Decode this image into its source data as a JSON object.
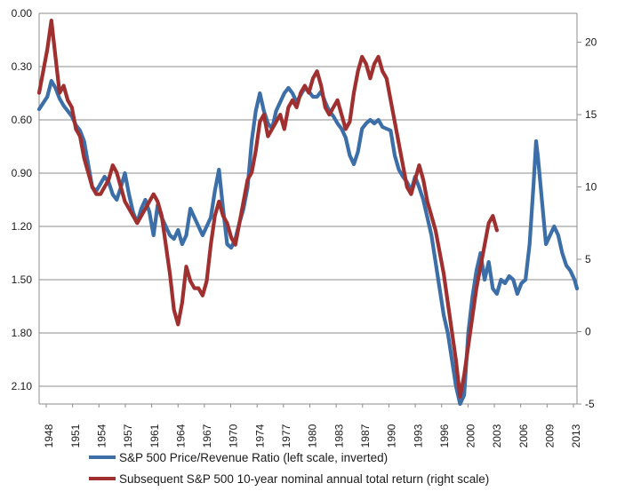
{
  "chart_data": {
    "type": "line",
    "title": "",
    "x_tick_labels": [
      "1948",
      "1951",
      "1954",
      "1957",
      "1961",
      "1964",
      "1967",
      "1970",
      "1974",
      "1977",
      "1980",
      "1983",
      "1987",
      "1990",
      "1993",
      "1996",
      "2000",
      "2003",
      "2006",
      "2009",
      "2013"
    ],
    "left_axis": {
      "inverted": true,
      "ylim": [
        0.0,
        2.2
      ],
      "tick_values": [
        0.0,
        0.3,
        0.6,
        0.9,
        1.2,
        1.5,
        1.8,
        2.1
      ],
      "tick_labels": [
        "0.00",
        "0.30",
        "0.60",
        "0.90",
        "1.20",
        "1.50",
        "1.80",
        "2.10"
      ]
    },
    "right_axis": {
      "ylim": [
        -5,
        22
      ],
      "tick_values": [
        -5,
        0,
        5,
        10,
        15,
        20
      ],
      "tick_labels": [
        "-5",
        "0",
        "5",
        "10",
        "15",
        "20"
      ]
    },
    "grid": true,
    "legend_position": "bottom",
    "series": [
      {
        "name": "S&P 500 Price/Revenue Ratio (left scale, inverted)",
        "axis": "left",
        "color": "#3c6ea8",
        "points": [
          [
            1948.0,
            0.54
          ],
          [
            1949.0,
            0.47
          ],
          [
            1949.5,
            0.38
          ],
          [
            1950.0,
            0.42
          ],
          [
            1950.5,
            0.48
          ],
          [
            1951.0,
            0.52
          ],
          [
            1951.5,
            0.55
          ],
          [
            1952.0,
            0.58
          ],
          [
            1952.5,
            0.63
          ],
          [
            1953.0,
            0.66
          ],
          [
            1953.5,
            0.72
          ],
          [
            1954.0,
            0.85
          ],
          [
            1954.5,
            0.98
          ],
          [
            1955.0,
            1.0
          ],
          [
            1955.5,
            0.96
          ],
          [
            1956.0,
            0.92
          ],
          [
            1956.5,
            0.95
          ],
          [
            1957.0,
            1.02
          ],
          [
            1957.5,
            1.05
          ],
          [
            1958.0,
            0.98
          ],
          [
            1958.5,
            0.9
          ],
          [
            1959.0,
            1.02
          ],
          [
            1959.5,
            1.12
          ],
          [
            1960.0,
            1.18
          ],
          [
            1960.5,
            1.1
          ],
          [
            1961.0,
            1.05
          ],
          [
            1961.5,
            1.12
          ],
          [
            1962.0,
            1.25
          ],
          [
            1962.5,
            1.08
          ],
          [
            1963.0,
            1.15
          ],
          [
            1963.5,
            1.2
          ],
          [
            1964.0,
            1.25
          ],
          [
            1964.5,
            1.27
          ],
          [
            1965.0,
            1.22
          ],
          [
            1965.5,
            1.3
          ],
          [
            1966.0,
            1.25
          ],
          [
            1966.5,
            1.1
          ],
          [
            1967.0,
            1.15
          ],
          [
            1967.5,
            1.2
          ],
          [
            1968.0,
            1.25
          ],
          [
            1968.5,
            1.2
          ],
          [
            1969.0,
            1.15
          ],
          [
            1969.5,
            1.0
          ],
          [
            1970.0,
            0.88
          ],
          [
            1970.5,
            1.1
          ],
          [
            1971.0,
            1.3
          ],
          [
            1971.5,
            1.32
          ],
          [
            1972.0,
            1.27
          ],
          [
            1972.5,
            1.18
          ],
          [
            1973.0,
            1.1
          ],
          [
            1973.5,
            0.98
          ],
          [
            1974.0,
            0.72
          ],
          [
            1974.5,
            0.55
          ],
          [
            1975.0,
            0.45
          ],
          [
            1975.5,
            0.55
          ],
          [
            1976.0,
            0.62
          ],
          [
            1976.5,
            0.65
          ],
          [
            1977.0,
            0.55
          ],
          [
            1977.5,
            0.5
          ],
          [
            1978.0,
            0.45
          ],
          [
            1978.5,
            0.42
          ],
          [
            1979.0,
            0.45
          ],
          [
            1979.5,
            0.5
          ],
          [
            1980.0,
            0.46
          ],
          [
            1980.5,
            0.42
          ],
          [
            1981.0,
            0.44
          ],
          [
            1981.5,
            0.47
          ],
          [
            1982.0,
            0.47
          ],
          [
            1982.5,
            0.44
          ],
          [
            1983.0,
            0.5
          ],
          [
            1983.5,
            0.55
          ],
          [
            1984.0,
            0.58
          ],
          [
            1984.5,
            0.62
          ],
          [
            1985.0,
            0.65
          ],
          [
            1985.5,
            0.7
          ],
          [
            1986.0,
            0.8
          ],
          [
            1986.5,
            0.85
          ],
          [
            1987.0,
            0.78
          ],
          [
            1987.5,
            0.65
          ],
          [
            1988.0,
            0.62
          ],
          [
            1988.5,
            0.6
          ],
          [
            1989.0,
            0.62
          ],
          [
            1989.5,
            0.6
          ],
          [
            1990.0,
            0.64
          ],
          [
            1990.5,
            0.65
          ],
          [
            1991.0,
            0.66
          ],
          [
            1991.5,
            0.8
          ],
          [
            1992.0,
            0.88
          ],
          [
            1992.5,
            0.92
          ],
          [
            1993.0,
            0.95
          ],
          [
            1993.5,
            1.0
          ],
          [
            1994.0,
            0.92
          ],
          [
            1994.5,
            0.98
          ],
          [
            1995.0,
            1.05
          ],
          [
            1995.5,
            1.15
          ],
          [
            1996.0,
            1.25
          ],
          [
            1996.5,
            1.4
          ],
          [
            1997.0,
            1.55
          ],
          [
            1997.5,
            1.7
          ],
          [
            1998.0,
            1.8
          ],
          [
            1998.5,
            1.95
          ],
          [
            1999.0,
            2.1
          ],
          [
            1999.5,
            2.2
          ],
          [
            2000.0,
            2.15
          ],
          [
            2000.5,
            1.8
          ],
          [
            2001.0,
            1.6
          ],
          [
            2001.5,
            1.45
          ],
          [
            2002.0,
            1.35
          ],
          [
            2002.5,
            1.5
          ],
          [
            2003.0,
            1.4
          ],
          [
            2003.5,
            1.55
          ],
          [
            2004.0,
            1.58
          ],
          [
            2004.5,
            1.5
          ],
          [
            2005.0,
            1.52
          ],
          [
            2005.5,
            1.48
          ],
          [
            2006.0,
            1.5
          ],
          [
            2006.5,
            1.58
          ],
          [
            2007.0,
            1.52
          ],
          [
            2007.5,
            1.5
          ],
          [
            2008.0,
            1.3
          ],
          [
            2008.5,
            0.95
          ],
          [
            2008.8,
            0.72
          ],
          [
            2009.0,
            0.8
          ],
          [
            2009.5,
            1.05
          ],
          [
            2010.0,
            1.3
          ],
          [
            2010.5,
            1.25
          ],
          [
            2011.0,
            1.2
          ],
          [
            2011.5,
            1.25
          ],
          [
            2012.0,
            1.35
          ],
          [
            2012.5,
            1.42
          ],
          [
            2013.0,
            1.45
          ],
          [
            2013.5,
            1.5
          ],
          [
            2013.8,
            1.55
          ]
        ]
      },
      {
        "name": "Subsequent S&P 500 10-year nominal annual total return (right scale)",
        "axis": "right",
        "color": "#a03030",
        "points": [
          [
            1948.0,
            16.5
          ],
          [
            1948.5,
            18.0
          ],
          [
            1949.0,
            19.5
          ],
          [
            1949.5,
            21.5
          ],
          [
            1950.0,
            19.0
          ],
          [
            1950.5,
            16.5
          ],
          [
            1951.0,
            17.0
          ],
          [
            1951.5,
            16.0
          ],
          [
            1952.0,
            15.5
          ],
          [
            1952.5,
            14.0
          ],
          [
            1953.0,
            13.5
          ],
          [
            1953.5,
            12.0
          ],
          [
            1954.0,
            11.0
          ],
          [
            1954.5,
            10.0
          ],
          [
            1955.0,
            9.5
          ],
          [
            1955.5,
            9.5
          ],
          [
            1956.0,
            10.0
          ],
          [
            1956.5,
            10.5
          ],
          [
            1957.0,
            11.5
          ],
          [
            1957.5,
            11.0
          ],
          [
            1958.0,
            10.0
          ],
          [
            1958.5,
            9.0
          ],
          [
            1959.0,
            8.5
          ],
          [
            1959.5,
            8.0
          ],
          [
            1960.0,
            7.5
          ],
          [
            1960.5,
            8.0
          ],
          [
            1961.0,
            8.5
          ],
          [
            1961.5,
            9.0
          ],
          [
            1962.0,
            9.5
          ],
          [
            1962.5,
            9.0
          ],
          [
            1963.0,
            8.0
          ],
          [
            1963.5,
            6.0
          ],
          [
            1964.0,
            4.0
          ],
          [
            1964.5,
            1.5
          ],
          [
            1965.0,
            0.5
          ],
          [
            1965.5,
            2.0
          ],
          [
            1966.0,
            4.5
          ],
          [
            1966.5,
            3.5
          ],
          [
            1967.0,
            3.0
          ],
          [
            1967.5,
            3.0
          ],
          [
            1968.0,
            2.5
          ],
          [
            1968.5,
            3.5
          ],
          [
            1969.0,
            6.0
          ],
          [
            1969.5,
            8.0
          ],
          [
            1970.0,
            9.0
          ],
          [
            1970.5,
            8.0
          ],
          [
            1971.0,
            7.5
          ],
          [
            1971.5,
            6.5
          ],
          [
            1972.0,
            6.0
          ],
          [
            1972.5,
            7.5
          ],
          [
            1973.0,
            9.0
          ],
          [
            1973.5,
            10.5
          ],
          [
            1974.0,
            11.0
          ],
          [
            1974.5,
            12.5
          ],
          [
            1975.0,
            14.5
          ],
          [
            1975.5,
            15.0
          ],
          [
            1976.0,
            13.5
          ],
          [
            1976.5,
            14.0
          ],
          [
            1977.0,
            14.5
          ],
          [
            1977.5,
            15.0
          ],
          [
            1978.0,
            14.0
          ],
          [
            1978.5,
            15.5
          ],
          [
            1979.0,
            16.0
          ],
          [
            1979.5,
            15.5
          ],
          [
            1980.0,
            16.5
          ],
          [
            1980.5,
            17.0
          ],
          [
            1981.0,
            16.5
          ],
          [
            1981.5,
            17.5
          ],
          [
            1982.0,
            18.0
          ],
          [
            1982.5,
            17.0
          ],
          [
            1983.0,
            15.5
          ],
          [
            1983.5,
            15.0
          ],
          [
            1984.0,
            15.5
          ],
          [
            1984.5,
            16.0
          ],
          [
            1985.0,
            15.0
          ],
          [
            1985.5,
            14.0
          ],
          [
            1986.0,
            14.5
          ],
          [
            1986.5,
            16.5
          ],
          [
            1987.0,
            18.0
          ],
          [
            1987.5,
            19.0
          ],
          [
            1988.0,
            18.5
          ],
          [
            1988.5,
            17.5
          ],
          [
            1989.0,
            18.5
          ],
          [
            1989.5,
            19.0
          ],
          [
            1990.0,
            18.0
          ],
          [
            1990.5,
            17.5
          ],
          [
            1991.0,
            16.0
          ],
          [
            1991.5,
            14.5
          ],
          [
            1992.0,
            13.0
          ],
          [
            1992.5,
            11.5
          ],
          [
            1993.0,
            10.0
          ],
          [
            1993.5,
            9.5
          ],
          [
            1994.0,
            10.5
          ],
          [
            1994.5,
            11.5
          ],
          [
            1995.0,
            10.5
          ],
          [
            1995.5,
            9.0
          ],
          [
            1996.0,
            8.0
          ],
          [
            1996.5,
            7.0
          ],
          [
            1997.0,
            5.5
          ],
          [
            1997.5,
            4.0
          ],
          [
            1998.0,
            2.0
          ],
          [
            1998.5,
            0.0
          ],
          [
            1999.0,
            -2.0
          ],
          [
            1999.5,
            -4.5
          ],
          [
            2000.0,
            -3.0
          ],
          [
            2000.5,
            -1.0
          ],
          [
            2001.0,
            1.0
          ],
          [
            2001.5,
            3.0
          ],
          [
            2002.0,
            4.5
          ],
          [
            2002.5,
            6.0
          ],
          [
            2003.0,
            7.5
          ],
          [
            2003.5,
            8.0
          ],
          [
            2004.0,
            7.0
          ]
        ]
      }
    ]
  },
  "legend": {
    "items": [
      {
        "label": "S&P 500 Price/Revenue Ratio (left scale, inverted)",
        "color": "#3c6ea8"
      },
      {
        "label": "Subsequent S&P 500 10-year nominal annual total return (right scale)",
        "color": "#a03030"
      }
    ]
  }
}
